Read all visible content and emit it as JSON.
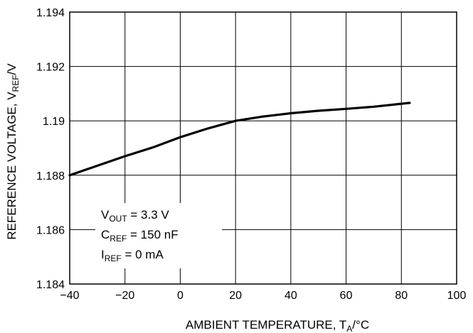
{
  "chart_data": {
    "type": "line",
    "xlabel": {
      "main": "AMBIENT TEMPERATURE, T",
      "sub": "A",
      "unit": "/°C"
    },
    "ylabel": {
      "main": "REFERENCE VOLTAGE, V",
      "sub": "REF",
      "unit": "/V"
    },
    "xlim": [
      -40,
      100
    ],
    "ylim": [
      1.184,
      1.194
    ],
    "xticks": [
      "−40",
      "−20",
      "0",
      "20",
      "40",
      "60",
      "80",
      "100"
    ],
    "yticks": [
      "1.184",
      "1.186",
      "1.188",
      "1.19",
      "1.192",
      "1.194"
    ],
    "grid": true,
    "series": [
      {
        "x": [
          -40,
          -30,
          -20,
          -10,
          0,
          10,
          20,
          30,
          40,
          50,
          60,
          70,
          83
        ],
        "y": [
          1.188,
          1.18835,
          1.1887,
          1.18902,
          1.1894,
          1.18972,
          1.19,
          1.19016,
          1.19028,
          1.19037,
          1.19044,
          1.19052,
          1.19066
        ]
      }
    ],
    "annotation": [
      {
        "main": "V",
        "sub": "OUT",
        "rest": " = 3.3 V"
      },
      {
        "main": "C",
        "sub": "REF",
        "rest": " = 150 nF"
      },
      {
        "main": "I",
        "sub": "REF",
        "rest": " = 0 mA"
      }
    ]
  }
}
